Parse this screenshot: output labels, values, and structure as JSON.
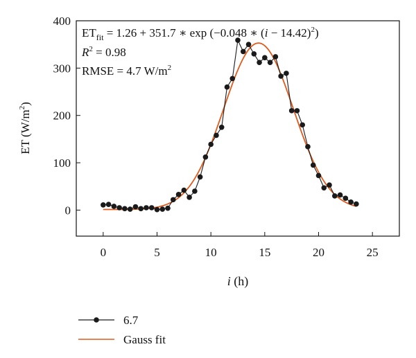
{
  "chart_data": {
    "type": "line",
    "xlabel_italic": "i",
    "xlabel_unit": " (h)",
    "ylabel_base": "ET (W/m",
    "ylabel_sup": "2",
    "ylabel_tail": ")",
    "xlim": [
      -2.5,
      27.5
    ],
    "ylim": [
      -55,
      400
    ],
    "xticks": [
      0,
      5,
      10,
      15,
      20,
      25
    ],
    "yticks": [
      0,
      100,
      200,
      300,
      400
    ],
    "grid": false,
    "legend_position": "below-left",
    "annotations": {
      "eq_lhs": "ET",
      "eq_sub": "fit",
      "eq_rhs_1": " = 1.26 + 351.7 ∗ exp (−0.048 ∗ (",
      "eq_rhs_i": "i",
      "eq_rhs_2": " − 14.42)",
      "eq_rhs_sup": "2",
      "eq_rhs_3": ")",
      "r2_R": "R",
      "r2_sup": "2",
      "r2_val": " = 0.98",
      "rmse_text": "RMSE = 4.7 W/m",
      "rmse_sup": "2"
    },
    "series": [
      {
        "name": "6.7",
        "kind": "markers-line",
        "color": "#1a1a1a",
        "x": [
          0,
          0.5,
          1,
          1.5,
          2,
          2.5,
          3,
          3.5,
          4,
          4.5,
          5,
          5.5,
          6,
          6.5,
          7,
          7.5,
          8,
          8.5,
          9,
          9.5,
          10,
          10.5,
          11,
          11.5,
          12,
          12.5,
          13,
          13.5,
          14,
          14.5,
          15,
          15.5,
          16,
          16.5,
          17,
          17.5,
          18,
          18.5,
          19,
          19.5,
          20,
          20.5,
          21,
          21.5,
          22,
          22.5,
          23,
          23.5
        ],
        "y": [
          11,
          12,
          8,
          5,
          3,
          2,
          7,
          3,
          5,
          5,
          1,
          2,
          4,
          22,
          33,
          42,
          27,
          40,
          70,
          112,
          139,
          158,
          175,
          260,
          278,
          359,
          335,
          350,
          330,
          312,
          322,
          312,
          324,
          283,
          289,
          210,
          210,
          180,
          134,
          95,
          73,
          47,
          53,
          30,
          32,
          25,
          17,
          13
        ]
      },
      {
        "name": "Gauss fit",
        "kind": "curve",
        "color": "#e05a1c",
        "a": 1.26,
        "b": 351.7,
        "c": 0.048,
        "mu": 14.42,
        "x_range": [
          0,
          23.5
        ]
      }
    ]
  }
}
